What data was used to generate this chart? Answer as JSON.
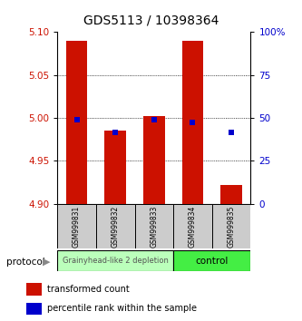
{
  "title": "GDS5113 / 10398364",
  "samples": [
    "GSM999831",
    "GSM999832",
    "GSM999833",
    "GSM999834",
    "GSM999835"
  ],
  "bar_bottom": 4.9,
  "bar_top": [
    5.09,
    4.985,
    5.002,
    5.09,
    4.922
  ],
  "percentile_values": [
    4.998,
    4.983,
    4.998,
    4.995,
    4.983
  ],
  "ylim": [
    4.9,
    5.1
  ],
  "yticks_left": [
    4.9,
    4.95,
    5.0,
    5.05,
    5.1
  ],
  "yticks_right": [
    0,
    25,
    50,
    75,
    100
  ],
  "bar_color": "#cc1100",
  "percentile_color": "#0000cc",
  "group1_label": "Grainyhead-like 2 depletion",
  "group2_label": "control",
  "group1_color": "#bbffbb",
  "group2_color": "#44ee44",
  "group1_samples": [
    0,
    1,
    2
  ],
  "group2_samples": [
    3,
    4
  ],
  "protocol_label": "protocol",
  "legend_red": "transformed count",
  "legend_blue": "percentile rank within the sample",
  "title_fontsize": 10,
  "tick_fontsize": 7.5,
  "bar_width": 0.55
}
